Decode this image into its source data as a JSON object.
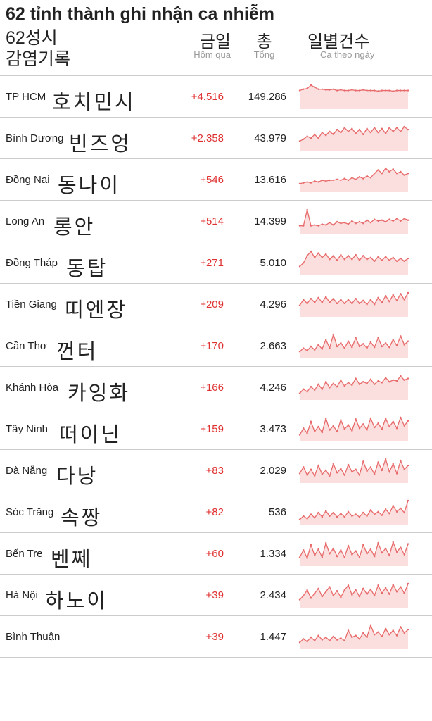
{
  "title": "62 tỉnh thành ghi nhận ca nhiễm",
  "header": {
    "left_line1": "62성시",
    "left_line2": "감염기록",
    "col_today_top": "금일",
    "col_today_sub": "Hôm qua",
    "col_total_top": "총",
    "col_total_sub": "Tổng",
    "col_spark_top": "일별건수",
    "col_spark_sub": "Ca theo ngày"
  },
  "spark_style": {
    "line_color": "#e86a6a",
    "fill_color": "#f7c4c4",
    "fill_opacity": 0.55,
    "line_width": 1.3,
    "dot_radius": 1.2,
    "width": 160,
    "height": 40,
    "n_points": 30
  },
  "layout": {
    "ko_left_offsets": [
      66,
      90,
      74,
      68,
      86,
      84,
      72,
      88,
      76,
      72,
      78,
      64,
      56,
      999
    ]
  },
  "rows": [
    {
      "vi": "TP HCM",
      "ko": "호치민시",
      "today": "+4.516",
      "total": "149.286",
      "spark": [
        28,
        30,
        31,
        36,
        33,
        30,
        30,
        29,
        29,
        30,
        28,
        29,
        28,
        28,
        29,
        28,
        28,
        29,
        28,
        28,
        28,
        27,
        28,
        28,
        28,
        27,
        28,
        28,
        28,
        28
      ]
    },
    {
      "vi": "Bình Dương",
      "ko": "빈즈엉",
      "today": "+2.358",
      "total": "43.979",
      "spark": [
        10,
        12,
        15,
        13,
        17,
        13,
        19,
        16,
        20,
        17,
        22,
        19,
        24,
        20,
        23,
        18,
        22,
        17,
        23,
        19,
        24,
        19,
        23,
        18,
        24,
        20,
        24,
        20,
        25,
        22
      ]
    },
    {
      "vi": "Đồng Nai",
      "ko": "동나이",
      "today": "+546",
      "total": "13.616",
      "spark": [
        10,
        11,
        12,
        11,
        13,
        12,
        14,
        13,
        14,
        14,
        15,
        14,
        16,
        14,
        17,
        15,
        18,
        16,
        19,
        17,
        22,
        26,
        22,
        28,
        24,
        27,
        22,
        24,
        20,
        22
      ]
    },
    {
      "vi": "Long An",
      "ko": "롱안",
      "today": "+514",
      "total": "14.399",
      "spark": [
        10,
        10,
        30,
        10,
        11,
        10,
        12,
        11,
        14,
        11,
        15,
        13,
        14,
        12,
        16,
        13,
        15,
        13,
        17,
        14,
        18,
        16,
        17,
        15,
        18,
        16,
        19,
        16,
        19,
        17
      ]
    },
    {
      "vi": "Đồng Tháp",
      "ko": "동탑",
      "today": "+271",
      "total": "5.010",
      "spark": [
        10,
        14,
        22,
        27,
        20,
        25,
        20,
        24,
        18,
        22,
        17,
        23,
        18,
        22,
        18,
        23,
        17,
        22,
        18,
        20,
        16,
        21,
        17,
        21,
        17,
        20,
        16,
        19,
        16,
        19
      ]
    },
    {
      "vi": "Tiền Giang",
      "ko": "띠엔장",
      "today": "+209",
      "total": "4.296",
      "spark": [
        12,
        18,
        14,
        19,
        15,
        20,
        15,
        21,
        15,
        19,
        14,
        18,
        14,
        18,
        14,
        19,
        14,
        17,
        13,
        18,
        13,
        20,
        15,
        22,
        16,
        23,
        17,
        24,
        18,
        25
      ]
    },
    {
      "vi": "Cần Thơ",
      "ko": "껀터",
      "today": "+170",
      "total": "2.663",
      "spark": [
        8,
        12,
        9,
        14,
        10,
        16,
        11,
        22,
        12,
        28,
        14,
        18,
        12,
        20,
        13,
        24,
        14,
        17,
        12,
        19,
        13,
        24,
        14,
        18,
        13,
        22,
        15,
        26,
        16,
        20
      ]
    },
    {
      "vi": "Khánh Hòa",
      "ko": "카잉화",
      "today": "+166",
      "total": "4.246",
      "spark": [
        8,
        13,
        10,
        16,
        12,
        19,
        13,
        22,
        15,
        20,
        16,
        24,
        17,
        21,
        18,
        26,
        19,
        22,
        20,
        25,
        19,
        23,
        21,
        27,
        22,
        24,
        23,
        29,
        24,
        26
      ]
    },
    {
      "vi": "Tây Ninh",
      "ko": "떠이닌",
      "today": "+159",
      "total": "3.473",
      "spark": [
        8,
        16,
        10,
        24,
        12,
        18,
        11,
        28,
        14,
        19,
        12,
        26,
        15,
        20,
        13,
        27,
        16,
        21,
        14,
        28,
        17,
        22,
        15,
        28,
        18,
        24,
        16,
        29,
        19,
        25
      ]
    },
    {
      "vi": "Đà Nẵng",
      "ko": "다낭",
      "today": "+83",
      "total": "2.029",
      "spark": [
        12,
        20,
        10,
        17,
        9,
        22,
        11,
        16,
        9,
        24,
        13,
        18,
        10,
        23,
        14,
        17,
        10,
        27,
        15,
        20,
        11,
        26,
        16,
        30,
        14,
        24,
        12,
        28,
        17,
        22
      ]
    },
    {
      "vi": "Sóc Trăng",
      "ko": "속짱",
      "today": "+82",
      "total": "536",
      "spark": [
        6,
        10,
        7,
        12,
        8,
        14,
        9,
        16,
        10,
        14,
        9,
        13,
        9,
        15,
        10,
        12,
        9,
        14,
        10,
        17,
        12,
        15,
        11,
        18,
        13,
        22,
        15,
        19,
        14,
        28
      ]
    },
    {
      "vi": "Bến Tre",
      "ko": "벤쩨",
      "today": "+60",
      "total": "1.334",
      "spark": [
        10,
        18,
        9,
        24,
        12,
        19,
        10,
        26,
        14,
        20,
        11,
        18,
        10,
        23,
        13,
        17,
        10,
        24,
        14,
        19,
        11,
        26,
        15,
        20,
        12,
        27,
        16,
        21,
        13,
        25
      ]
    },
    {
      "vi": "Hà Nội",
      "ko": "하노이",
      "today": "+39",
      "total": "2.434",
      "spark": [
        10,
        15,
        22,
        12,
        18,
        24,
        14,
        20,
        26,
        15,
        21,
        13,
        22,
        28,
        16,
        22,
        14,
        24,
        17,
        23,
        15,
        28,
        18,
        25,
        17,
        29,
        20,
        26,
        18,
        30
      ]
    },
    {
      "vi": "Bình Thuận",
      "ko": "",
      "today": "+39",
      "total": "1.447",
      "spark": [
        8,
        12,
        9,
        14,
        10,
        16,
        11,
        14,
        10,
        15,
        11,
        13,
        10,
        22,
        14,
        16,
        12,
        19,
        14,
        28,
        17,
        20,
        15,
        24,
        17,
        22,
        16,
        26,
        19,
        23
      ]
    }
  ]
}
